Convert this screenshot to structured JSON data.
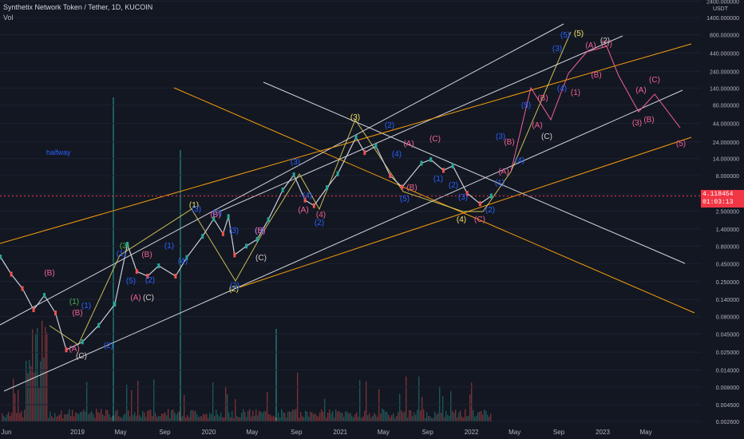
{
  "header": {
    "symbol_line": "Synthetix Network Token / Tether, 1D, KUCOIN",
    "volume_label": "Vol",
    "annotation": "halfway",
    "axis_unit": "USDT",
    "last_price": "4.118454",
    "countdown": "01:03:13"
  },
  "colors": {
    "background": "#131722",
    "up_candle": "#26a69a",
    "down_candle": "#ef5350",
    "channel_white": "#d1d4dc",
    "channel_orange": "#f59e0b",
    "wave_yellow": "#f5e663",
    "wave_blue": "#2962ff",
    "wave_pink": "#f06292",
    "price_line": "#f23645"
  },
  "chart_data": {
    "type": "line",
    "title": "Synthetix Network Token / Tether, 1D, KUCOIN",
    "yscale": "log",
    "y_ticks": [
      "2400.000000",
      "1400.000000",
      "800.000000",
      "440.000000",
      "240.000000",
      "140.000000",
      "80.000000",
      "44.000000",
      "24.000000",
      "14.000000",
      "8.000000",
      "4.400000",
      "2.500000",
      "1.400000",
      "0.800000",
      "0.450000",
      "0.250000",
      "0.140000",
      "0.080000",
      "0.045000",
      "0.025000",
      "0.014000",
      "0.008000",
      "0.004500",
      "0.002600"
    ],
    "x_ticks": [
      "Jun",
      "2019",
      "May",
      "Sep",
      "2020",
      "May",
      "Sep",
      "2021",
      "May",
      "Sep",
      "2022",
      "May",
      "Sep",
      "2023",
      "May"
    ],
    "series": [
      {
        "values": [
          {
            "date": "2018-06-01",
            "price": 0.56
          },
          {
            "date": "2018-07-01",
            "price": 0.32
          },
          {
            "date": "2018-08-01",
            "price": 0.2
          },
          {
            "date": "2018-09-01",
            "price": 0.1
          },
          {
            "date": "2018-10-01",
            "price": 0.16
          },
          {
            "date": "2018-11-01",
            "price": 0.09
          },
          {
            "date": "2018-12-01",
            "price": 0.027
          },
          {
            "date": "2019-01-15",
            "price": 0.035
          },
          {
            "date": "2019-03-01",
            "price": 0.06
          },
          {
            "date": "2019-04-15",
            "price": 0.12
          },
          {
            "date": "2019-05-20",
            "price": 0.85
          },
          {
            "date": "2019-06-15",
            "price": 0.35
          },
          {
            "date": "2019-07-15",
            "price": 0.3
          },
          {
            "date": "2019-08-15",
            "price": 0.42
          },
          {
            "date": "2019-10-01",
            "price": 0.3
          },
          {
            "date": "2019-11-01",
            "price": 0.55
          },
          {
            "date": "2019-12-15",
            "price": 1.1
          },
          {
            "date": "2020-01-15",
            "price": 1.95
          },
          {
            "date": "2020-02-10",
            "price": 1.2
          },
          {
            "date": "2020-02-25",
            "price": 2.1
          },
          {
            "date": "2020-03-13",
            "price": 0.6
          },
          {
            "date": "2020-04-15",
            "price": 0.8
          },
          {
            "date": "2020-05-15",
            "price": 1.0
          },
          {
            "date": "2020-06-15",
            "price": 1.9
          },
          {
            "date": "2020-07-25",
            "price": 5.0
          },
          {
            "date": "2020-08-25",
            "price": 8.2
          },
          {
            "date": "2020-09-25",
            "price": 3.6
          },
          {
            "date": "2020-10-20",
            "price": 3.0
          },
          {
            "date": "2020-11-25",
            "price": 5.4
          },
          {
            "date": "2020-12-25",
            "price": 8.5
          },
          {
            "date": "2021-02-14",
            "price": 28.0
          },
          {
            "date": "2021-03-10",
            "price": 17.0
          },
          {
            "date": "2021-04-10",
            "price": 21.0
          },
          {
            "date": "2021-05-20",
            "price": 8.0
          },
          {
            "date": "2021-06-22",
            "price": 5.5
          },
          {
            "date": "2021-08-15",
            "price": 12.0
          },
          {
            "date": "2021-09-10",
            "price": 13.5
          },
          {
            "date": "2021-10-15",
            "price": 9.5
          },
          {
            "date": "2021-11-10",
            "price": 11.0
          },
          {
            "date": "2021-12-20",
            "price": 4.5
          },
          {
            "date": "2022-01-25",
            "price": 3.2
          },
          {
            "date": "2022-02-25",
            "price": 4.118
          }
        ]
      }
    ]
  }
}
